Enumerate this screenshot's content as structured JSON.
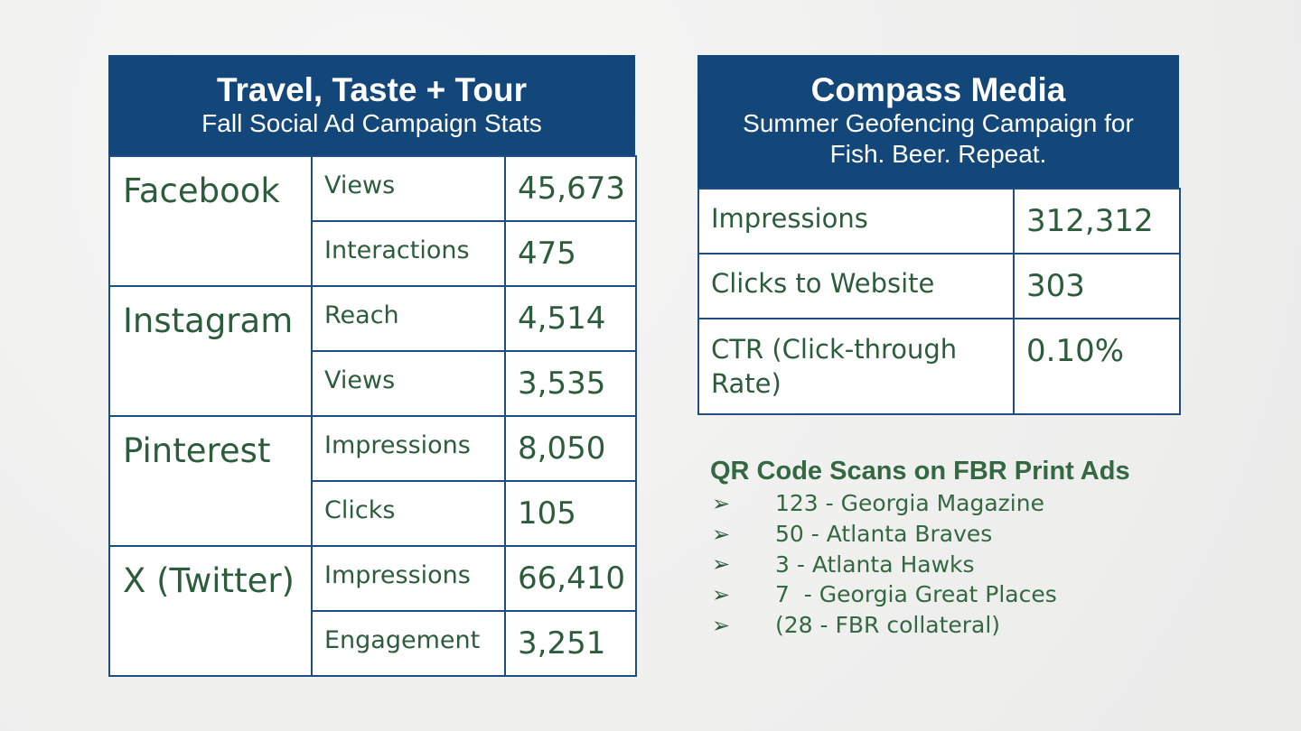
{
  "left_panel": {
    "title": "Travel, Taste + Tour",
    "subtitle": "Fall Social Ad Campaign Stats",
    "rows": [
      {
        "platform": "Facebook",
        "metrics": [
          {
            "label": "Views",
            "value": "45,673"
          },
          {
            "label": "Interactions",
            "value": "475"
          }
        ]
      },
      {
        "platform": "Instagram",
        "metrics": [
          {
            "label": "Reach",
            "value": "4,514"
          },
          {
            "label": "Views",
            "value": "3,535"
          }
        ]
      },
      {
        "platform": "Pinterest",
        "metrics": [
          {
            "label": "Impressions",
            "value": "8,050"
          },
          {
            "label": "Clicks",
            "value": "105"
          }
        ]
      },
      {
        "platform": "X (Twitter)",
        "metrics": [
          {
            "label": "Impressions",
            "value": "66,410"
          },
          {
            "label": "Engagement",
            "value": "3,251"
          }
        ]
      }
    ]
  },
  "right_panel": {
    "title": "Compass Media",
    "subtitle_line1": "Summer Geofencing Campaign for",
    "subtitle_line2": "Fish. Beer. Repeat.",
    "rows": [
      {
        "label": "Impressions",
        "value": "312,312"
      },
      {
        "label": "Clicks to Website",
        "value": "303"
      },
      {
        "label": "CTR (Click-through Rate)",
        "value": "0.10%"
      }
    ]
  },
  "qr": {
    "title": "QR Code Scans on FBR Print Ads",
    "bullet": "➢",
    "items": [
      "123 - Georgia Magazine",
      "50 - Atlanta Braves",
      "3 - Atlanta Hawks",
      "7  - Georgia Great Places",
      "(28 - FBR collateral)"
    ]
  },
  "colors": {
    "header_bg": "#13477a",
    "text_green": "#2d5c3c",
    "border": "#1f4f80"
  }
}
